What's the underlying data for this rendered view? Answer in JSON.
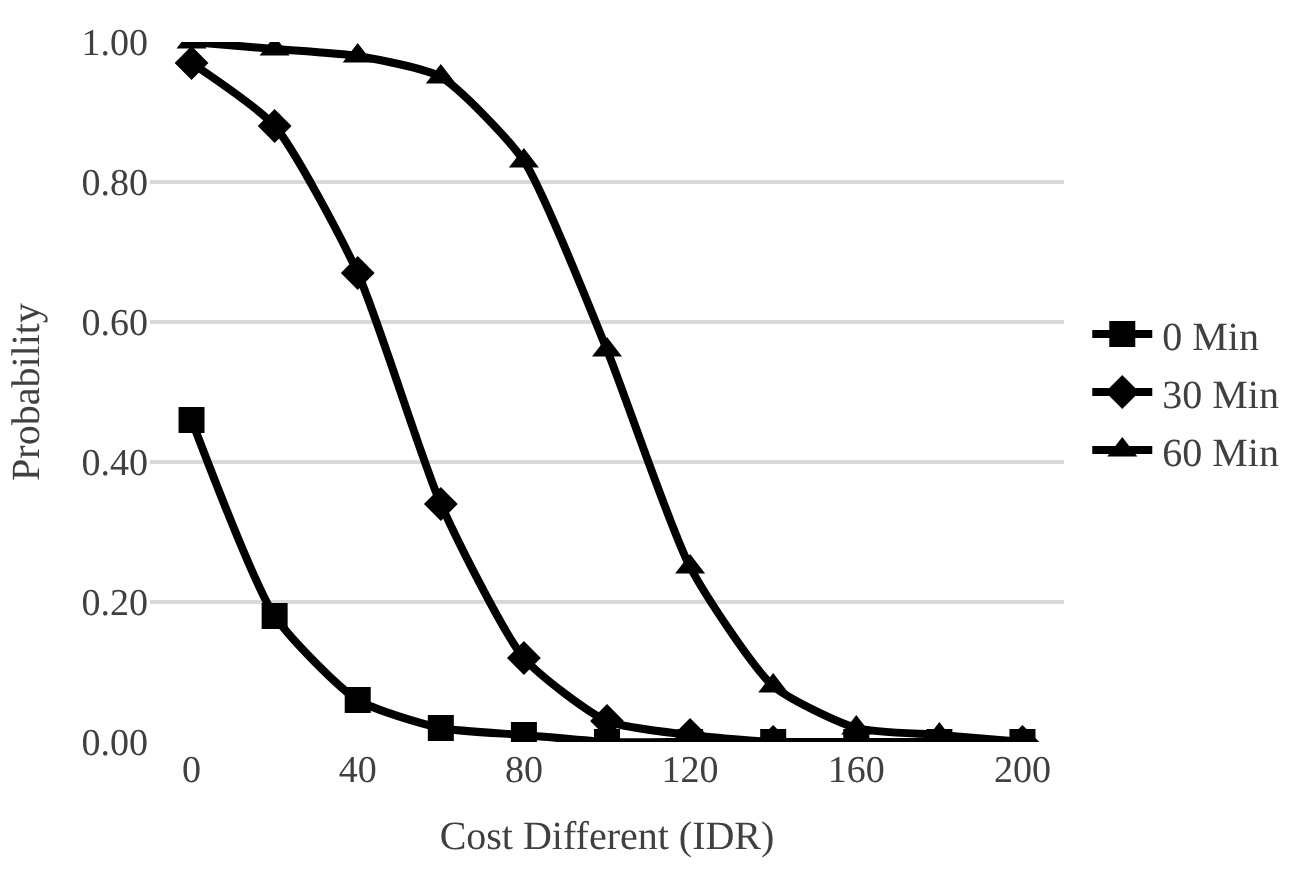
{
  "chart_data": {
    "type": "line",
    "xlabel": "Cost Different (IDR)",
    "ylabel": "Probability",
    "x": [
      0,
      20,
      40,
      60,
      80,
      100,
      120,
      140,
      160,
      180,
      200
    ],
    "series": [
      {
        "name": "0 Min",
        "color": "#000000",
        "marker": "square",
        "values": [
          0.46,
          0.18,
          0.06,
          0.02,
          0.01,
          0.0,
          0.0,
          0.0,
          0.0,
          0.0,
          0.0
        ]
      },
      {
        "name": "30 Min",
        "color": "#000000",
        "marker": "diamond",
        "values": [
          0.97,
          0.88,
          0.67,
          0.34,
          0.12,
          0.03,
          0.01,
          0.0,
          0.0,
          0.0,
          0.0
        ]
      },
      {
        "name": "60 Min",
        "color": "#000000",
        "marker": "triangle",
        "values": [
          1.0,
          0.99,
          0.98,
          0.95,
          0.83,
          0.56,
          0.25,
          0.08,
          0.02,
          0.01,
          0.0
        ]
      }
    ],
    "xlim": [
      -10,
      210
    ],
    "xticks": [
      0,
      40,
      80,
      120,
      160,
      200
    ],
    "ylim": [
      0,
      1
    ],
    "yticks": [
      {
        "value": 0,
        "label": "0.00"
      },
      {
        "value": 0.2,
        "label": "0.20"
      },
      {
        "value": 0.4,
        "label": "0.40"
      },
      {
        "value": 0.6,
        "label": "0.60"
      },
      {
        "value": 0.8,
        "label": "0.80"
      },
      {
        "value": 1,
        "label": "1.00"
      }
    ],
    "grid": "y",
    "legend": "right"
  }
}
